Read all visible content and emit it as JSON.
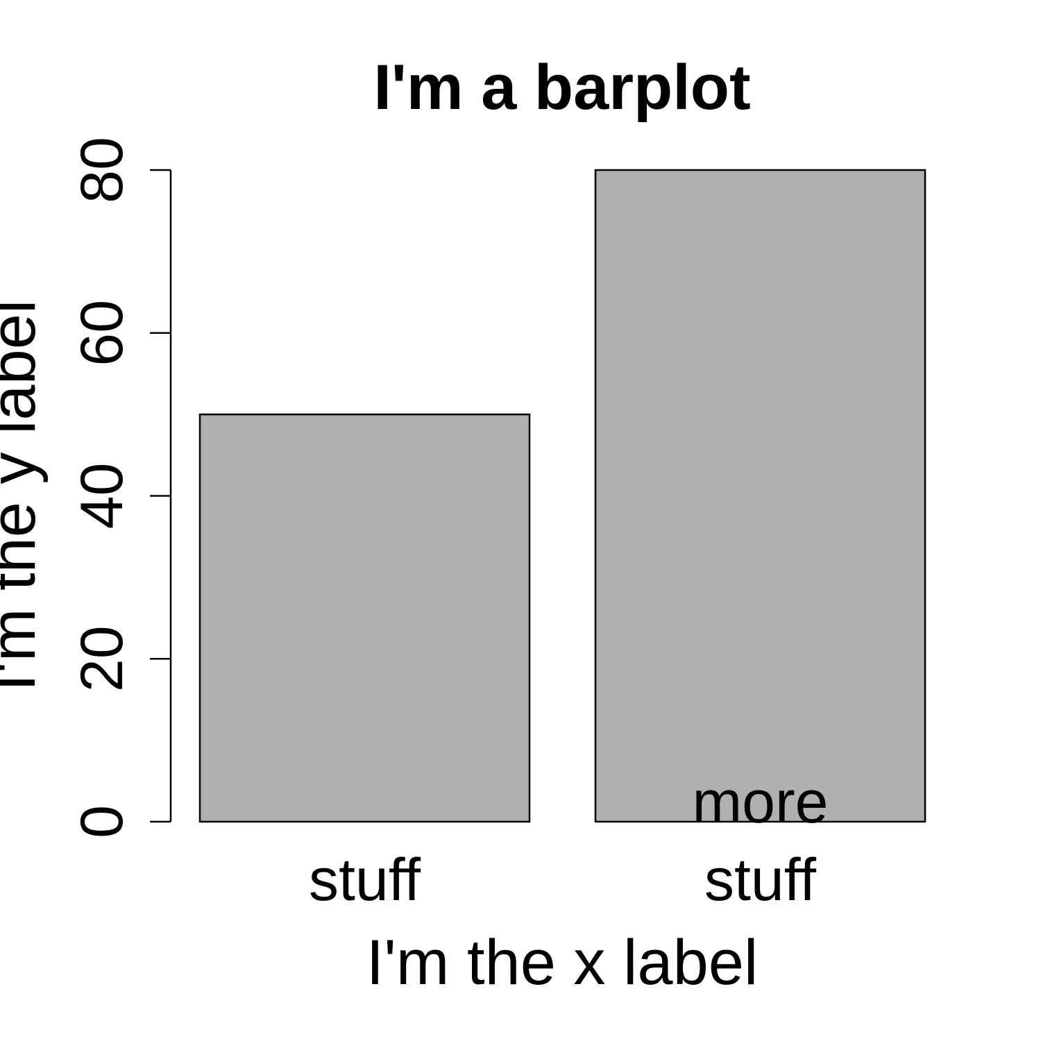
{
  "chart_data": {
    "type": "bar",
    "title": "I'm a barplot",
    "xlabel": "I'm the x label",
    "ylabel": "I'm the y label",
    "categories": [
      "stuff",
      "more\nstuff"
    ],
    "values": [
      50,
      80
    ],
    "ylim": [
      0,
      80
    ],
    "yticks": [
      "0",
      "20",
      "40",
      "60",
      "80"
    ],
    "grid": false,
    "legend": "none",
    "bar_color": "#b0b0b0",
    "bar_edge_color": "#000000"
  }
}
